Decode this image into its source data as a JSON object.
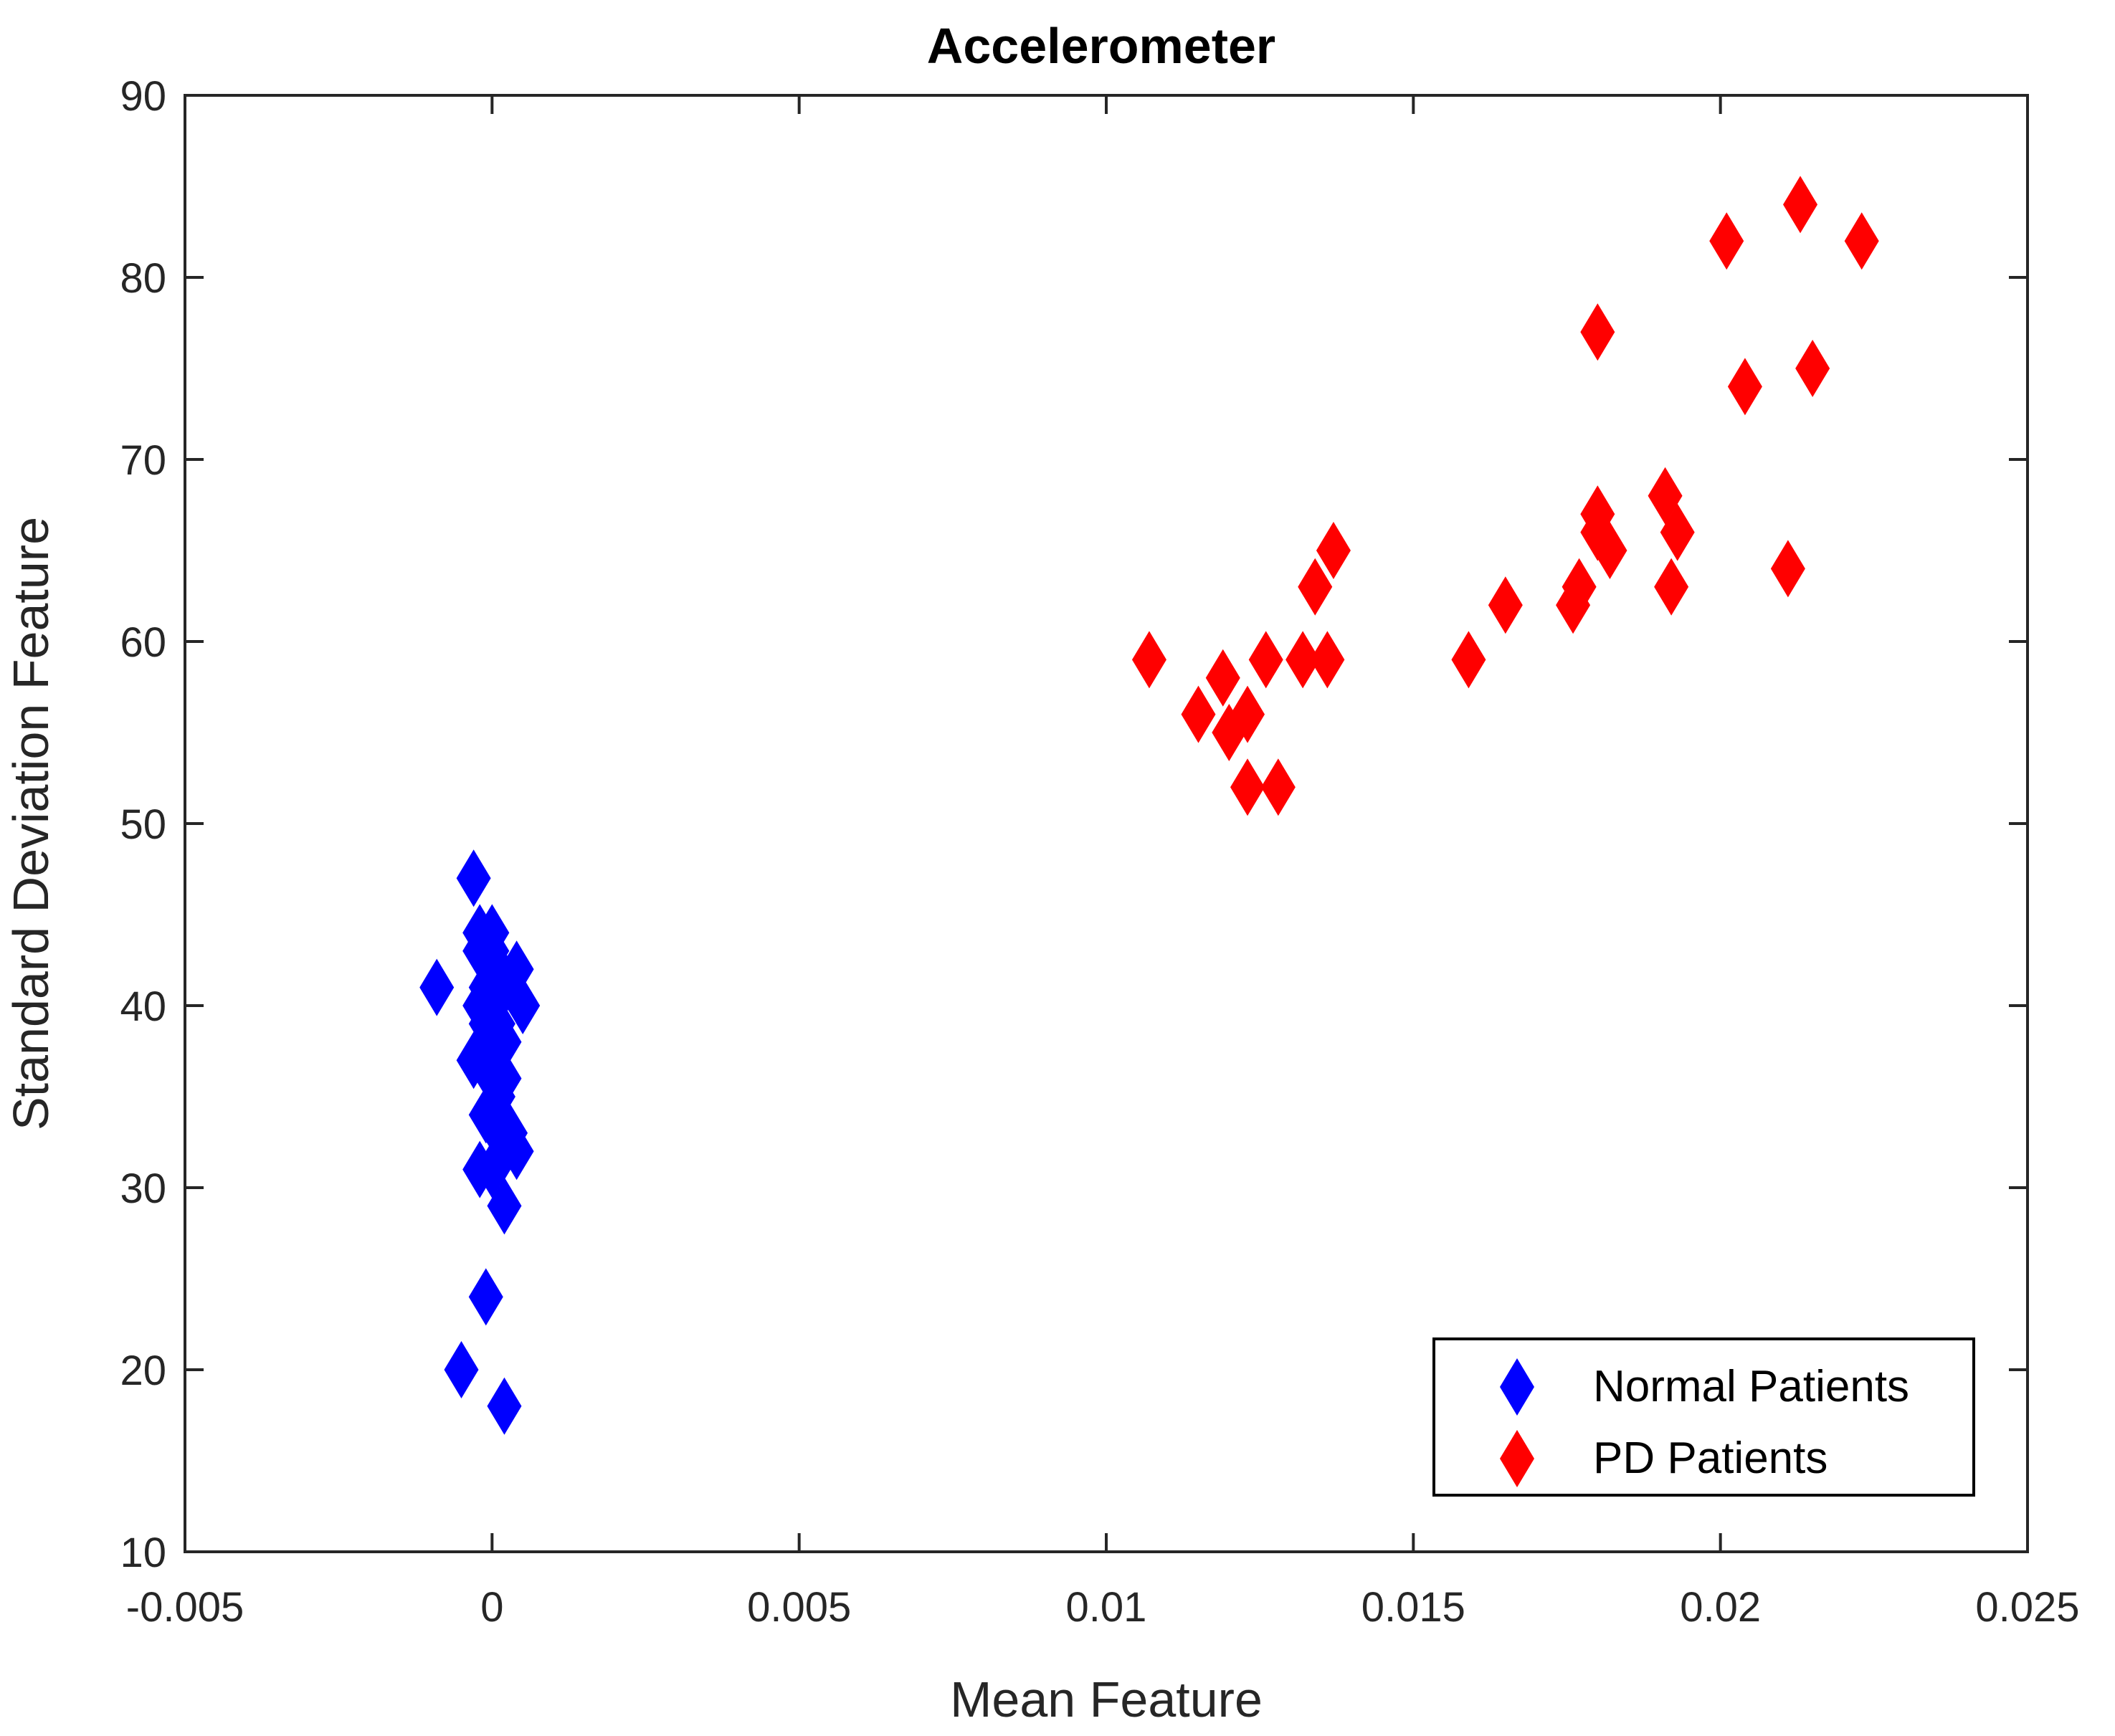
{
  "chart_data": {
    "type": "scatter",
    "title": "Accelerometer",
    "xlabel": "Mean Feature",
    "ylabel": "Standard Deviation Feature",
    "xlim": [
      -0.005,
      0.025
    ],
    "ylim": [
      10,
      90
    ],
    "xticks": [
      -0.005,
      0,
      0.005,
      0.01,
      0.015,
      0.02,
      0.025
    ],
    "xtick_labels": [
      "-0.005",
      "0",
      "0.005",
      "0.01",
      "0.015",
      "0.02",
      "0.025"
    ],
    "yticks": [
      10,
      20,
      30,
      40,
      50,
      60,
      70,
      80,
      90
    ],
    "ytick_labels": [
      "10",
      "20",
      "30",
      "40",
      "50",
      "60",
      "70",
      "80",
      "90"
    ],
    "grid": false,
    "legend_position": "bottom-right",
    "marker": "diamond",
    "series": [
      {
        "name": "Normal Patients",
        "color": "#0000ff",
        "points": [
          [
            -0.0003,
            47
          ],
          [
            -0.0002,
            44
          ],
          [
            0.0,
            44
          ],
          [
            -0.0002,
            43
          ],
          [
            0.0,
            43
          ],
          [
            0.0004,
            42
          ],
          [
            0.0001,
            42
          ],
          [
            -0.0009,
            41
          ],
          [
            -0.0001,
            41
          ],
          [
            0.0002,
            41
          ],
          [
            -0.0002,
            40
          ],
          [
            0.0,
            40
          ],
          [
            0.0005,
            40
          ],
          [
            0.0001,
            39
          ],
          [
            -0.0001,
            39
          ],
          [
            0.0,
            38
          ],
          [
            0.0002,
            38
          ],
          [
            -0.0003,
            37
          ],
          [
            -0.0001,
            37
          ],
          [
            0.0002,
            36
          ],
          [
            0.0,
            36
          ],
          [
            0.0001,
            35
          ],
          [
            -0.0001,
            34
          ],
          [
            0.0,
            34
          ],
          [
            0.0001,
            33
          ],
          [
            0.0003,
            33
          ],
          [
            0.0002,
            32
          ],
          [
            0.0004,
            32
          ],
          [
            0.0,
            31
          ],
          [
            -0.0002,
            31
          ],
          [
            0.0002,
            29
          ],
          [
            -0.0001,
            24
          ],
          [
            -0.0005,
            20
          ],
          [
            0.0002,
            18
          ]
        ]
      },
      {
        "name": "PD Patients",
        "color": "#ff0000",
        "points": [
          [
            0.0107,
            59
          ],
          [
            0.0115,
            56
          ],
          [
            0.0119,
            58
          ],
          [
            0.012,
            55
          ],
          [
            0.0123,
            56
          ],
          [
            0.0123,
            52
          ],
          [
            0.0126,
            59
          ],
          [
            0.0128,
            52
          ],
          [
            0.0132,
            59
          ],
          [
            0.0134,
            63
          ],
          [
            0.0136,
            59
          ],
          [
            0.0137,
            65
          ],
          [
            0.0159,
            59
          ],
          [
            0.0165,
            62
          ],
          [
            0.0176,
            62
          ],
          [
            0.0177,
            63
          ],
          [
            0.018,
            67
          ],
          [
            0.018,
            66
          ],
          [
            0.0182,
            65
          ],
          [
            0.018,
            77
          ],
          [
            0.0191,
            68
          ],
          [
            0.0192,
            63
          ],
          [
            0.0193,
            66
          ],
          [
            0.0201,
            82
          ],
          [
            0.0204,
            74
          ],
          [
            0.0211,
            64
          ],
          [
            0.0213,
            84
          ],
          [
            0.0215,
            75
          ],
          [
            0.0223,
            82
          ]
        ]
      }
    ]
  }
}
